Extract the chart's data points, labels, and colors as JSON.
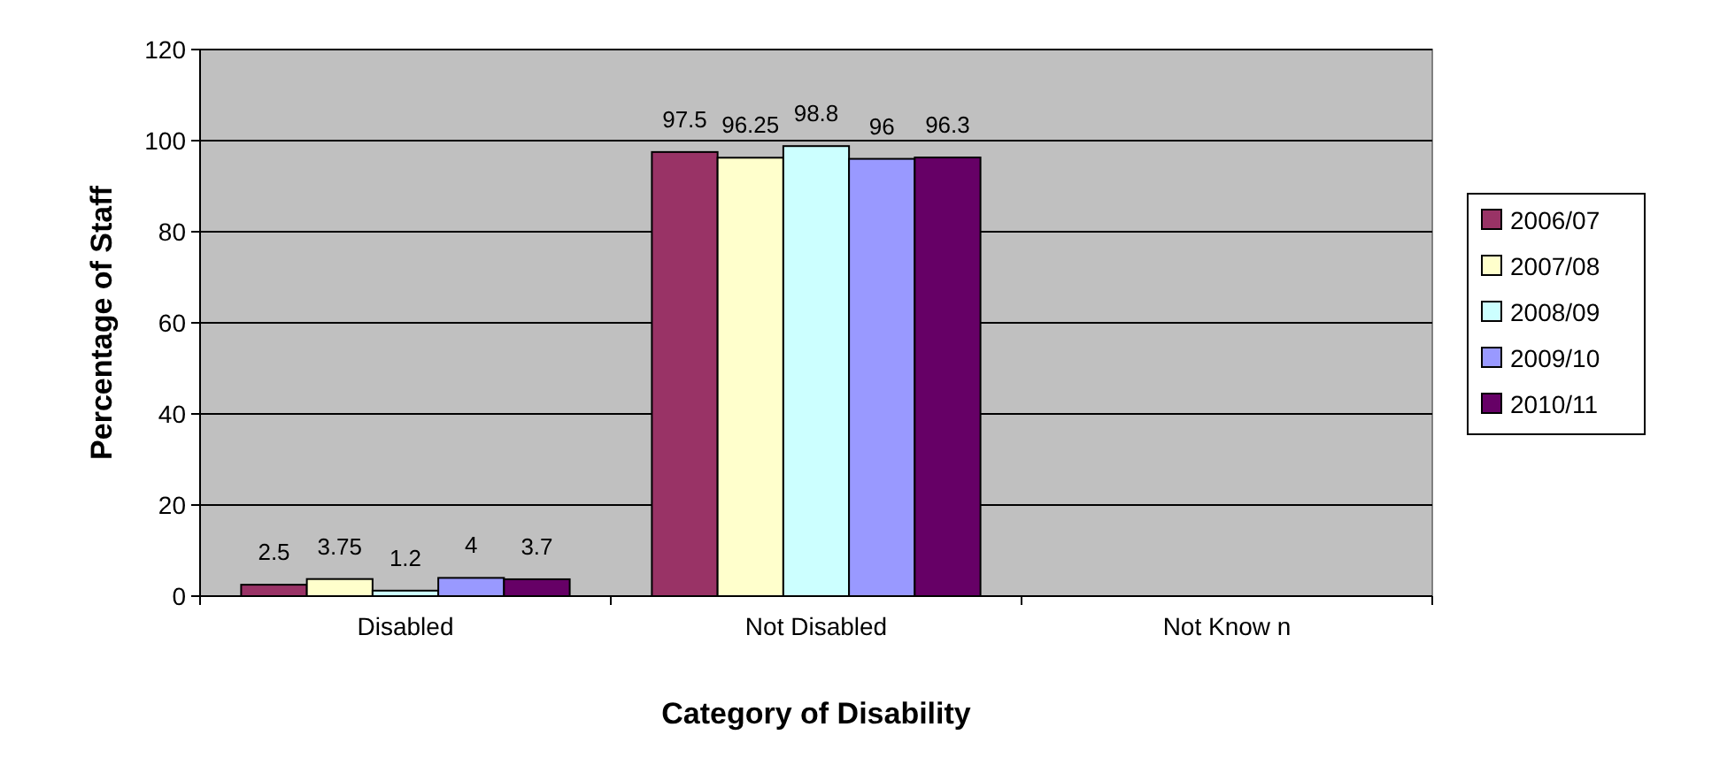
{
  "chart_data": {
    "type": "bar",
    "xlabel": "Category of Disability",
    "ylabel": "Percentage of Staff",
    "categories": [
      "Disabled",
      "Not Disabled",
      "Not Know n"
    ],
    "series": [
      {
        "name": "2006/07",
        "color": "#993366",
        "values": [
          2.5,
          97.5,
          null
        ]
      },
      {
        "name": "2007/08",
        "color": "#ffffcc",
        "values": [
          3.75,
          96.25,
          null
        ]
      },
      {
        "name": "2008/09",
        "color": "#ccffff",
        "values": [
          1.2,
          98.8,
          null
        ]
      },
      {
        "name": "2009/10",
        "color": "#9999ff",
        "values": [
          4,
          96,
          null
        ]
      },
      {
        "name": "2010/11",
        "color": "#660066",
        "values": [
          3.7,
          96.3,
          null
        ]
      }
    ],
    "ylim": [
      0,
      120
    ],
    "yticks": [
      0,
      20,
      40,
      60,
      80,
      100,
      120
    ],
    "grid": "y",
    "legend": "right",
    "data_labels": true
  }
}
